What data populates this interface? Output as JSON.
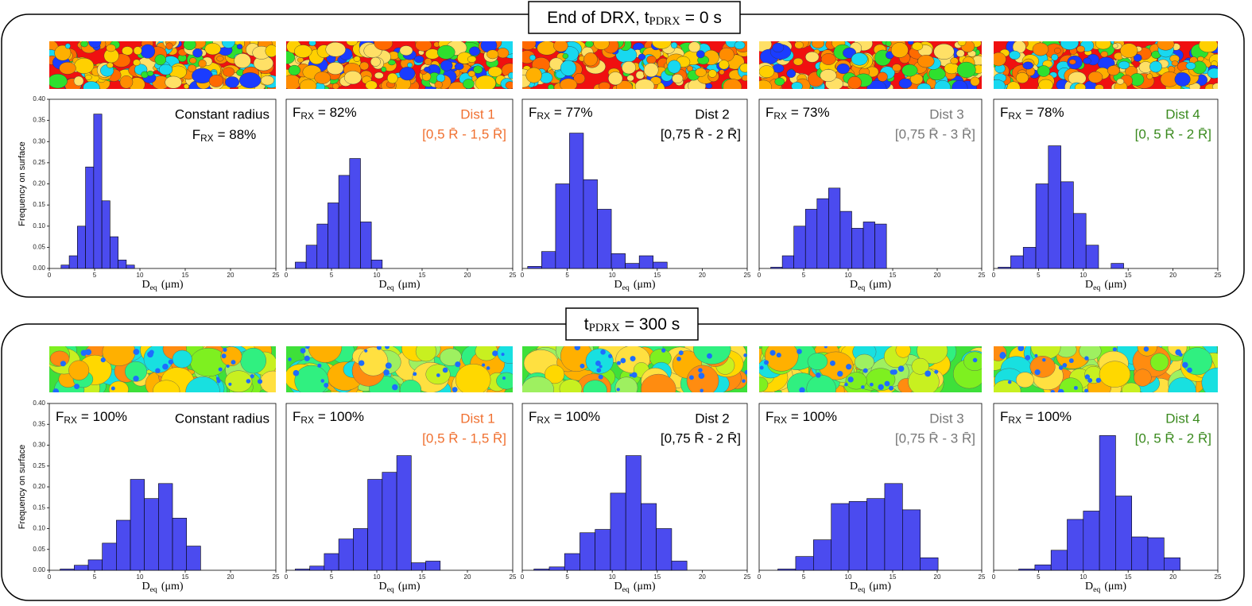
{
  "sections": [
    {
      "title": "End of DRX, t",
      "title_sub": "PDRX",
      "title_rest": "= 0 s"
    },
    {
      "title": "t",
      "title_sub": "PDRX",
      "title_rest": "= 300 s"
    }
  ],
  "chart_data": [
    {
      "type": "histogram",
      "color": "#4b4bef",
      "bins": [
        1.3,
        2.2,
        3.1,
        4.0,
        4.9,
        5.8,
        6.7,
        7.6,
        8.5,
        9.4
      ],
      "counts": [
        0.008,
        0.03,
        0.1,
        0.24,
        0.365,
        0.16,
        0.075,
        0.02,
        0.008
      ],
      "xlim": [
        0,
        25
      ],
      "ylim": [
        0,
        0.4
      ],
      "xticks": [
        0,
        5,
        10,
        15,
        20,
        25
      ],
      "yticks": [
        {
          "value": 0,
          "label": "0.00"
        },
        {
          "value": 0.05,
          "label": "0.05"
        },
        {
          "value": 0.1,
          "label": "0.10"
        },
        {
          "value": 0.15,
          "label": "0.15"
        },
        {
          "value": 0.2,
          "label": "0.20"
        },
        {
          "value": 0.25,
          "label": "0.25"
        },
        {
          "value": 0.3,
          "label": "0.30"
        },
        {
          "value": 0.35,
          "label": "0.35"
        },
        {
          "value": 0.4,
          "label": "0.40"
        }
      ],
      "ylabel": "Frequency on surface",
      "xlabel": "D",
      "xlabel_sub": "eq",
      "xlabel_rest": "(μm)",
      "frx": "F",
      "frx_sub": "RX",
      "frx_rest": "= 88%",
      "label": "Constant radius",
      "label_color": "#000000"
    },
    {
      "type": "histogram",
      "color": "#4b4bef",
      "bins": [
        1.0,
        2.2,
        3.4,
        4.6,
        5.8,
        7.0,
        8.2,
        9.4,
        10.6
      ],
      "counts": [
        0.015,
        0.055,
        0.105,
        0.155,
        0.22,
        0.26,
        0.11,
        0.02
      ],
      "xlim": [
        0,
        25
      ],
      "ylim": [
        0,
        0.4
      ],
      "xticks": [
        0,
        5,
        10,
        15,
        20,
        25
      ],
      "xlabel": "D",
      "xlabel_sub": "eq",
      "xlabel_rest": "(μm)",
      "frx": "F",
      "frx_sub": "RX",
      "frx_rest": "= 82%",
      "label": "Dist 1",
      "range": "[0,5 R̄ - 1,5 R̄]",
      "label_color": "#f07030"
    },
    {
      "type": "histogram",
      "color": "#4b4bef",
      "bins": [
        0.6,
        2.15,
        3.7,
        5.25,
        6.8,
        8.35,
        9.9,
        11.45,
        13.0,
        14.55,
        16.1
      ],
      "counts": [
        0.005,
        0.04,
        0.2,
        0.32,
        0.21,
        0.14,
        0.035,
        0.012,
        0.03,
        0.015
      ],
      "xlim": [
        0,
        25
      ],
      "ylim": [
        0,
        0.4
      ],
      "xticks": [
        0,
        5,
        10,
        15,
        20,
        25
      ],
      "xlabel": "D",
      "xlabel_sub": "eq",
      "xlabel_rest": "(μm)",
      "frx": "F",
      "frx_sub": "RX",
      "frx_rest": "= 77%",
      "label": "Dist 2",
      "range": "[0,75 R̄ - 2 R̄]",
      "label_color": "#000000"
    },
    {
      "type": "histogram",
      "color": "#4b4bef",
      "bins": [
        1.3,
        2.6,
        3.9,
        5.2,
        6.5,
        7.8,
        9.1,
        10.4,
        11.7,
        13.0,
        14.3
      ],
      "counts": [
        0.003,
        0.03,
        0.1,
        0.14,
        0.165,
        0.19,
        0.135,
        0.095,
        0.11,
        0.105
      ],
      "xlim": [
        0,
        25
      ],
      "ylim": [
        0,
        0.4
      ],
      "xticks": [
        0,
        5,
        10,
        15,
        20,
        25
      ],
      "xlabel": "D",
      "xlabel_sub": "eq",
      "xlabel_rest": "(μm)",
      "frx": "F",
      "frx_sub": "RX",
      "frx_rest": "= 73%",
      "label": "Dist 3",
      "range": "[0,75 R̄ - 3 R̄]",
      "label_color": "#777777"
    },
    {
      "type": "histogram",
      "color": "#4b4bef",
      "bins": [
        0.5,
        1.9,
        3.3,
        4.7,
        6.1,
        7.5,
        8.9,
        10.3,
        11.7,
        13.1,
        14.5
      ],
      "counts": [
        0.003,
        0.03,
        0.05,
        0.2,
        0.29,
        0.205,
        0.13,
        0.055,
        0,
        0.012
      ],
      "xlim": [
        0,
        25
      ],
      "ylim": [
        0,
        0.4
      ],
      "xticks": [
        0,
        5,
        10,
        15,
        20,
        25
      ],
      "xlabel": "D",
      "xlabel_sub": "eq",
      "xlabel_rest": "(μm)",
      "frx": "F",
      "frx_sub": "RX",
      "frx_rest": "= 78%",
      "label": "Dist 4",
      "range": "[0, 5 R̄ - 2 R̄]",
      "label_color": "#3a8a1e"
    },
    {
      "type": "histogram",
      "color": "#4b4bef",
      "bins": [
        1.2,
        2.75,
        4.3,
        5.85,
        7.4,
        8.95,
        10.5,
        12.05,
        13.6,
        15.15,
        16.7
      ],
      "counts": [
        0.003,
        0.012,
        0.025,
        0.065,
        0.12,
        0.218,
        0.172,
        0.208,
        0.125,
        0.058
      ],
      "xlim": [
        0,
        25
      ],
      "ylim": [
        0,
        0.4
      ],
      "xticks": [
        0,
        5,
        10,
        15,
        20,
        25
      ],
      "yticks": [
        {
          "value": 0,
          "label": "0.00"
        },
        {
          "value": 0.05,
          "label": "0.05"
        },
        {
          "value": 0.1,
          "label": "0.10"
        },
        {
          "value": 0.15,
          "label": "0.15"
        },
        {
          "value": 0.2,
          "label": "0.20"
        },
        {
          "value": 0.25,
          "label": "0.25"
        },
        {
          "value": 0.3,
          "label": "0.30"
        },
        {
          "value": 0.35,
          "label": "0.35"
        },
        {
          "value": 0.4,
          "label": "0.40"
        }
      ],
      "ylabel": "Frequency on surface",
      "xlabel": "D",
      "xlabel_sub": "eq",
      "xlabel_rest": "(μm)",
      "frx": "F",
      "frx_sub": "RX",
      "frx_rest": "= 100%",
      "label": "Constant radius",
      "label_color": "#000000"
    },
    {
      "type": "histogram",
      "color": "#4b4bef",
      "bins": [
        1.0,
        2.6,
        4.2,
        5.8,
        7.4,
        9.0,
        10.6,
        12.2,
        13.8,
        15.4,
        17.0
      ],
      "counts": [
        0.003,
        0.01,
        0.04,
        0.075,
        0.1,
        0.218,
        0.235,
        0.275,
        0.018,
        0.022
      ],
      "xlim": [
        0,
        25
      ],
      "ylim": [
        0,
        0.4
      ],
      "xticks": [
        0,
        5,
        10,
        15,
        20,
        25
      ],
      "xlabel": "D",
      "xlabel_sub": "eq",
      "xlabel_rest": "(μm)",
      "frx": "F",
      "frx_sub": "RX",
      "frx_rest": "= 100%",
      "label": "Dist 1",
      "range": "[0,5 R̄ - 1,5 R̄]",
      "label_color": "#f07030"
    },
    {
      "type": "histogram",
      "color": "#4b4bef",
      "bins": [
        1.3,
        3.0,
        4.7,
        6.4,
        8.1,
        9.8,
        11.5,
        13.2,
        14.9,
        16.6,
        18.3
      ],
      "counts": [
        0.003,
        0.008,
        0.04,
        0.09,
        0.098,
        0.185,
        0.275,
        0.16,
        0.1,
        0.022
      ],
      "xlim": [
        0,
        25
      ],
      "ylim": [
        0,
        0.4
      ],
      "xticks": [
        0,
        5,
        10,
        15,
        20,
        25
      ],
      "xlabel": "D",
      "xlabel_sub": "eq",
      "xlabel_rest": "(μm)",
      "frx": "F",
      "frx_sub": "RX",
      "frx_rest": "= 100%",
      "label": "Dist 2",
      "range": "[0,75 R̄ - 2 R̄]",
      "label_color": "#000000"
    },
    {
      "type": "histogram",
      "color": "#4b4bef",
      "bins": [
        2.1,
        4.1,
        6.1,
        8.1,
        10.1,
        12.1,
        14.1,
        16.1,
        18.1,
        20.1
      ],
      "counts": [
        0.003,
        0.033,
        0.073,
        0.16,
        0.165,
        0.172,
        0.208,
        0.145,
        0.03
      ],
      "xlim": [
        0,
        25
      ],
      "ylim": [
        0,
        0.4
      ],
      "xticks": [
        0,
        5,
        10,
        15,
        20,
        25
      ],
      "xlabel": "D",
      "xlabel_sub": "eq",
      "xlabel_rest": "(μm)",
      "frx": "F",
      "frx_sub": "RX",
      "frx_rest": "= 100%",
      "label": "Dist 3",
      "range": "[0,75 R̄ - 3 R̄]",
      "label_color": "#777777"
    },
    {
      "type": "histogram",
      "color": "#4b4bef",
      "bins": [
        2.8,
        4.6,
        6.4,
        8.2,
        10.0,
        11.8,
        13.6,
        15.4,
        17.2,
        19.0,
        20.8
      ],
      "counts": [
        0.003,
        0.013,
        0.048,
        0.122,
        0.142,
        0.323,
        0.178,
        0.08,
        0.078,
        0.03
      ],
      "xlim": [
        0,
        25
      ],
      "ylim": [
        0,
        0.4
      ],
      "xticks": [
        0,
        5,
        10,
        15,
        20,
        25
      ],
      "xlabel": "D",
      "xlabel_sub": "eq",
      "xlabel_rest": "(μm)",
      "frx": "F",
      "frx_sub": "RX",
      "frx_rest": "= 100%",
      "label": "Dist 4",
      "range": "[0, 5 R̄ - 2 R̄]",
      "label_color": "#3a8a1e"
    }
  ]
}
